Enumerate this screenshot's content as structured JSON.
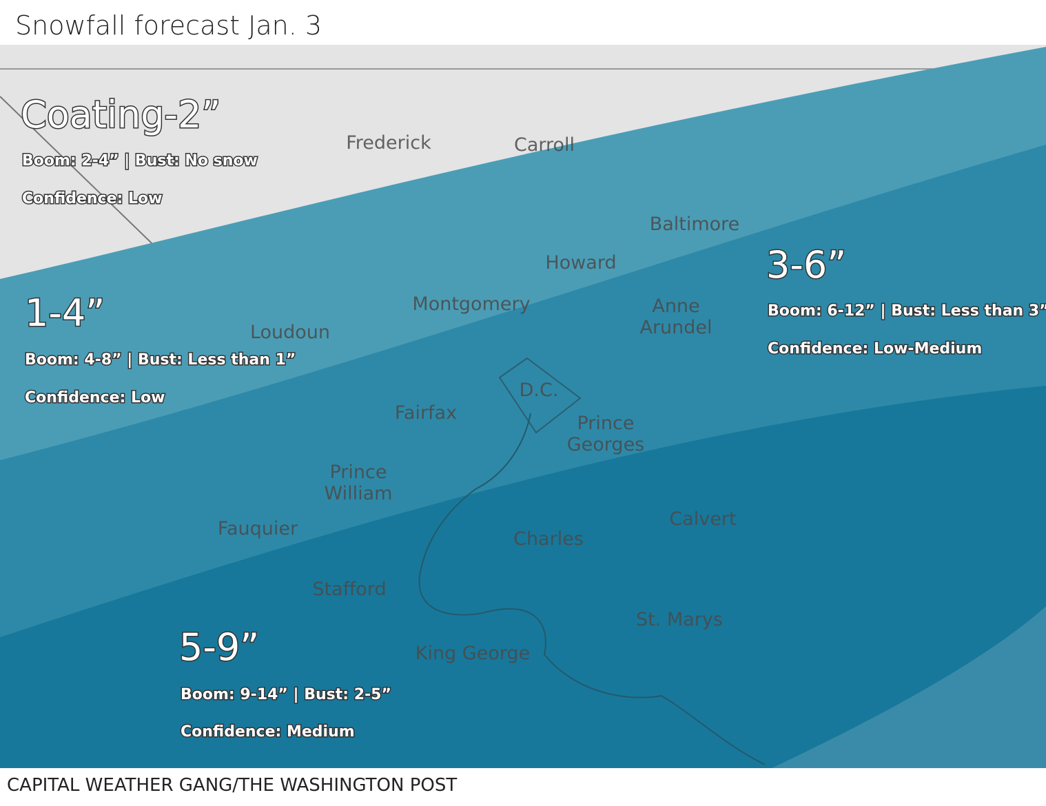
{
  "title": "Snowfall forecast Jan. 3",
  "zones": [
    {
      "amount": "Coating-2”",
      "boom_bust": "Boom: 2-4” | Bust: No snow",
      "confidence": "Confidence: Low"
    },
    {
      "amount": "1-4”",
      "boom_bust": "Boom: 4-8” | Bust: Less than 1”",
      "confidence": "Confidence: Low"
    },
    {
      "amount": "3-6”",
      "boom_bust": "Boom: 6-12” | Bust: Less than 3”",
      "confidence": "Confidence: Low-Medium"
    },
    {
      "amount": "5-9”",
      "boom_bust": "Boom: 9-14” | Bust: 2-5”",
      "confidence": "Confidence: Medium"
    }
  ],
  "places": [
    [
      "Frederick"
    ],
    [
      "Carroll"
    ],
    [
      "Baltimore"
    ],
    [
      "Howard"
    ],
    [
      "Montgomery"
    ],
    [
      "Anne",
      "Arundel"
    ],
    [
      "Loudoun"
    ],
    [
      "D.C."
    ],
    [
      "Fairfax"
    ],
    [
      "Prince",
      "Georges"
    ],
    [
      "Prince",
      "William"
    ],
    [
      "Fauquier"
    ],
    [
      "Calvert"
    ],
    [
      "Charles"
    ],
    [
      "Stafford"
    ],
    [
      "St. Marys"
    ],
    [
      "King George"
    ]
  ],
  "credit": "CAPITAL WEATHER GANG/THE WASHINGTON POST"
}
